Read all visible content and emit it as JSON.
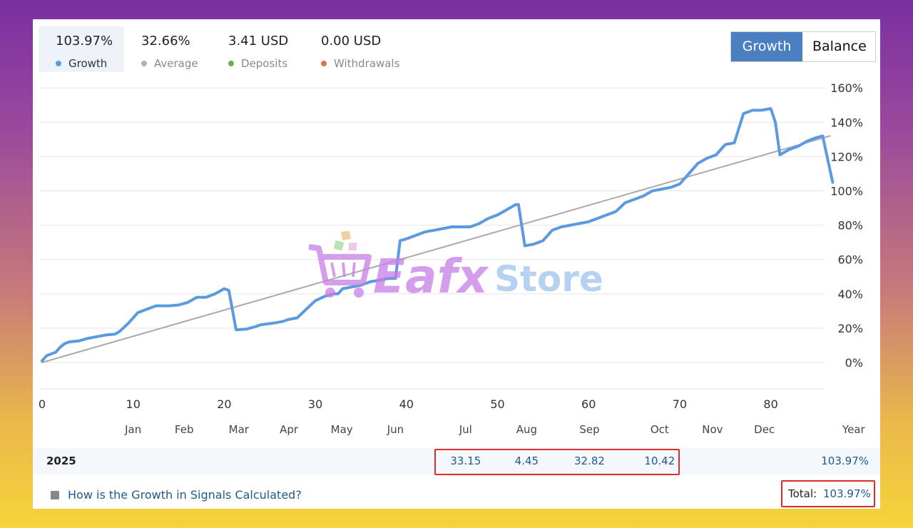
{
  "stats": {
    "growth": {
      "value": "103.97%",
      "label": "Growth",
      "color": "#5b9ae0"
    },
    "average": {
      "value": "32.66%",
      "label": "Average",
      "color": "#b0b0b0"
    },
    "deposits": {
      "value": "3.41 USD",
      "label": "Deposits",
      "color": "#6ab04c"
    },
    "withdrawals": {
      "value": "0.00 USD",
      "label": "Withdrawals",
      "color": "#e07050"
    }
  },
  "toggle": {
    "growth_label": "Growth",
    "balance_label": "Balance"
  },
  "watermark": {
    "brand_a": "Eafx",
    "brand_b": "Store"
  },
  "chart_data": {
    "type": "line",
    "ylim": [
      -15,
      165
    ],
    "xlim": [
      0,
      86
    ],
    "y_ticks": [
      0,
      20,
      40,
      60,
      80,
      100,
      120,
      140,
      160
    ],
    "y_tick_labels": [
      "0%",
      "20%",
      "40%",
      "60%",
      "80%",
      "100%",
      "120%",
      "140%",
      "160%"
    ],
    "x_ticks": [
      0,
      10,
      20,
      30,
      40,
      50,
      60,
      70,
      80
    ],
    "x_tick_labels": [
      "0",
      "10",
      "20",
      "30",
      "40",
      "50",
      "60",
      "70",
      "80"
    ],
    "months": [
      {
        "label": "Jan",
        "x": 10
      },
      {
        "label": "Feb",
        "x": 15.6
      },
      {
        "label": "Mar",
        "x": 21.6
      },
      {
        "label": "Apr",
        "x": 27.1
      },
      {
        "label": "May",
        "x": 32.9
      },
      {
        "label": "Jun",
        "x": 38.8
      },
      {
        "label": "Jul",
        "x": 46.5
      },
      {
        "label": "Aug",
        "x": 53.2
      },
      {
        "label": "Sep",
        "x": 60.1
      },
      {
        "label": "Oct",
        "x": 67.8
      },
      {
        "label": "Nov",
        "x": 73.6
      },
      {
        "label": "Dec",
        "x": 79.3
      },
      {
        "label": "Year",
        "x": 89.1
      }
    ],
    "grid": true,
    "series": [
      {
        "color": "#5b9ae0",
        "points": [
          [
            0,
            1
          ],
          [
            0.5,
            4
          ],
          [
            1.5,
            6
          ],
          [
            2,
            9
          ],
          [
            2.5,
            11
          ],
          [
            3,
            12
          ],
          [
            4,
            12.5
          ],
          [
            5,
            14
          ],
          [
            6,
            15
          ],
          [
            7,
            16
          ],
          [
            8,
            16.5
          ],
          [
            8.5,
            18
          ],
          [
            9.5,
            23
          ],
          [
            10,
            26
          ],
          [
            10.5,
            29
          ],
          [
            11.5,
            31
          ],
          [
            12.5,
            33
          ],
          [
            14,
            33
          ],
          [
            15,
            33.5
          ],
          [
            16,
            35
          ],
          [
            17,
            38
          ],
          [
            18,
            38
          ],
          [
            19,
            40
          ],
          [
            20,
            43
          ],
          [
            20.5,
            42
          ],
          [
            21.3,
            19
          ],
          [
            22.5,
            19.5
          ],
          [
            23.5,
            21
          ],
          [
            24,
            22
          ],
          [
            25.5,
            23
          ],
          [
            26.5,
            24
          ],
          [
            27,
            25
          ],
          [
            28,
            26
          ],
          [
            29,
            31
          ],
          [
            30,
            36
          ],
          [
            31,
            38.5
          ],
          [
            32,
            40
          ],
          [
            32.5,
            40
          ],
          [
            33,
            43
          ],
          [
            34,
            44
          ],
          [
            35,
            45
          ],
          [
            36,
            47
          ],
          [
            37,
            48
          ],
          [
            38,
            49
          ],
          [
            38.8,
            49
          ],
          [
            39.3,
            71
          ],
          [
            40,
            72
          ],
          [
            41,
            74
          ],
          [
            42,
            76
          ],
          [
            43,
            77
          ],
          [
            44,
            78
          ],
          [
            45,
            79
          ],
          [
            46,
            79
          ],
          [
            47,
            79
          ],
          [
            47.5,
            80
          ],
          [
            48,
            81
          ],
          [
            49,
            84
          ],
          [
            50,
            86
          ],
          [
            51,
            89
          ],
          [
            52,
            92
          ],
          [
            52.3,
            92
          ],
          [
            53,
            68
          ],
          [
            54,
            69
          ],
          [
            55,
            71
          ],
          [
            56,
            77
          ],
          [
            57,
            79
          ],
          [
            58,
            80
          ],
          [
            59,
            81
          ],
          [
            60,
            82
          ],
          [
            61,
            84
          ],
          [
            62,
            86
          ],
          [
            63,
            88
          ],
          [
            64,
            93
          ],
          [
            65,
            95
          ],
          [
            66,
            97
          ],
          [
            67,
            100
          ],
          [
            68,
            101
          ],
          [
            69,
            102
          ],
          [
            70,
            104
          ],
          [
            71,
            110
          ],
          [
            72,
            116
          ],
          [
            73,
            119
          ],
          [
            74,
            121
          ],
          [
            75,
            127
          ],
          [
            76,
            128
          ],
          [
            77,
            145
          ],
          [
            78,
            147
          ],
          [
            79,
            147
          ],
          [
            80,
            148
          ],
          [
            80.5,
            140
          ],
          [
            81,
            121
          ],
          [
            82,
            124
          ],
          [
            83,
            126
          ],
          [
            84,
            129
          ],
          [
            85,
            131
          ],
          [
            85.7,
            132
          ],
          [
            86.3,
            117
          ],
          [
            86.8,
            105
          ]
        ]
      },
      {
        "color": "#aaaaaa",
        "points": [
          [
            0,
            0
          ],
          [
            86.5,
            132
          ]
        ]
      }
    ]
  },
  "table": {
    "year": "2025",
    "cells": [
      {
        "month": "Jul",
        "value": "33.15"
      },
      {
        "month": "Aug",
        "value": "4.45"
      },
      {
        "month": "Sep",
        "value": "32.82"
      },
      {
        "month": "Oct",
        "value": "10.42"
      }
    ],
    "year_total": "103.97%"
  },
  "footer": {
    "link_text": "How is the Growth in Signals Calculated?",
    "total_label": "Total:",
    "total_value": "103.97%"
  }
}
